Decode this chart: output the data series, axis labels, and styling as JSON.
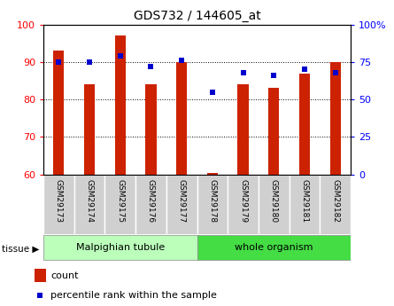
{
  "title": "GDS732 / 144605_at",
  "samples": [
    "GSM29173",
    "GSM29174",
    "GSM29175",
    "GSM29176",
    "GSM29177",
    "GSM29178",
    "GSM29179",
    "GSM29180",
    "GSM29181",
    "GSM29182"
  ],
  "count": [
    93,
    84,
    97,
    84,
    90,
    60.3,
    84,
    83,
    87,
    90
  ],
  "percentile": [
    75,
    75,
    79,
    72,
    76,
    55,
    68,
    66,
    70,
    68
  ],
  "bar_color": "#cc2200",
  "dot_color": "#0000cc",
  "left_ylim": [
    60,
    100
  ],
  "left_yticks": [
    60,
    70,
    80,
    90,
    100
  ],
  "right_ylim": [
    0,
    100
  ],
  "right_yticks": [
    0,
    25,
    50,
    75,
    100
  ],
  "right_yticklabels": [
    "0",
    "25",
    "50",
    "75",
    "100%"
  ],
  "tissue_groups": [
    {
      "label": "Malpighian tubule",
      "indices": [
        0,
        1,
        2,
        3,
        4
      ],
      "color": "#bbffbb"
    },
    {
      "label": "whole organism",
      "indices": [
        5,
        6,
        7,
        8,
        9
      ],
      "color": "#44dd44"
    }
  ],
  "legend_count_label": "count",
  "legend_pct_label": "percentile rank within the sample",
  "tissue_label": "tissue",
  "bar_width": 0.35
}
